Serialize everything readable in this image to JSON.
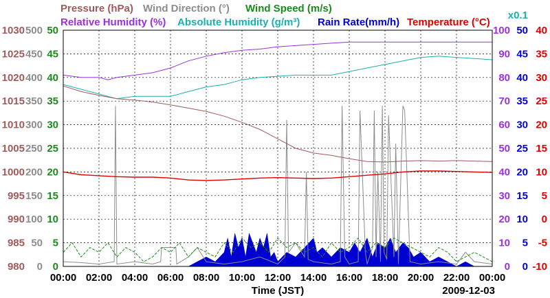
{
  "chart_data": {
    "type": "line",
    "title": "",
    "xlabel": "Time (JST)",
    "date_label": "2009-12-03",
    "x_tick_labels": [
      "00:00",
      "02:00",
      "04:00",
      "06:00",
      "08:00",
      "10:00",
      "12:00",
      "14:00",
      "16:00",
      "18:00",
      "20:00",
      "22:00",
      "00:00"
    ],
    "x_range_hours": [
      0,
      24
    ],
    "grid": true,
    "colors": {
      "pressure": "#a05a5a",
      "wind_direction": "#8c8c8c",
      "wind_speed": "#1a8a1a",
      "relative_humidity": "#9a30e0",
      "absolute_humidity": "#1ab0b0",
      "rain_rate": "#0000d0",
      "temperature": "#e00000"
    },
    "legend_row1": [
      {
        "key": "pressure",
        "label": "Pressure (hPa)"
      },
      {
        "key": "wind_direction",
        "label": "Wind Direction (°)"
      },
      {
        "key": "wind_speed",
        "label": "Wind Speed (m/s)"
      }
    ],
    "legend_row2": [
      {
        "key": "relative_humidity",
        "label": "Relative Humidity (%)"
      },
      {
        "key": "absolute_humidity",
        "label": "Absolute Humidity (g/m³)"
      },
      {
        "key": "rain_rate",
        "label": "Rain Rate(mm/h)"
      },
      {
        "key": "temperature",
        "label": "Temperature (°C)"
      }
    ],
    "multiplier_label": "x0.1",
    "axes": {
      "pressure": {
        "range": [
          980,
          1030
        ],
        "ticks": [
          "980",
          "985",
          "990",
          "995",
          "1000",
          "1005",
          "1010",
          "1015",
          "1020",
          "1025",
          "1030"
        ]
      },
      "wind_direction": {
        "range": [
          0,
          500
        ],
        "ticks": [
          "0",
          "50",
          "100",
          "150",
          "200",
          "250",
          "300",
          "350",
          "400",
          "450",
          "500"
        ]
      },
      "wind_speed": {
        "range": [
          0,
          50
        ],
        "ticks": [
          "0",
          "5",
          "10",
          "15",
          "20",
          "25",
          "30",
          "35",
          "40",
          "45",
          "50"
        ]
      },
      "relative_humidity": {
        "range": [
          0,
          100
        ],
        "ticks": [
          "0",
          "10",
          "20",
          "30",
          "40",
          "50",
          "60",
          "70",
          "80",
          "90",
          "100"
        ]
      },
      "rain_rate": {
        "range": [
          0,
          50
        ],
        "ticks": [
          "0",
          "5",
          "10",
          "15",
          "20",
          "25",
          "30",
          "35",
          "40",
          "45",
          "50"
        ]
      },
      "temperature": {
        "range": [
          -10,
          40
        ],
        "ticks": [
          "-10",
          "-5",
          "0",
          "5",
          "10",
          "15",
          "20",
          "25",
          "30",
          "35",
          "40"
        ]
      }
    },
    "series": [
      {
        "name": "Pressure",
        "key": "pressure",
        "axis": "pressure",
        "x": [
          0,
          1,
          2,
          3,
          4,
          5,
          6,
          7,
          8,
          9,
          10,
          11,
          12,
          12.5,
          13,
          13.5,
          14,
          15,
          16,
          17,
          18,
          19,
          20,
          21,
          22,
          23,
          24
        ],
        "y": [
          1018.2,
          1017,
          1016.2,
          1015.5,
          1015.2,
          1014.8,
          1014.2,
          1013.5,
          1012.8,
          1011.8,
          1010.5,
          1009,
          1007,
          1006,
          1005,
          1004.5,
          1004,
          1003.5,
          1002.8,
          1002.2,
          1002.1,
          1002.3,
          1002.4,
          1002.3,
          1002.4,
          1002.3,
          1002.2
        ]
      },
      {
        "name": "Relative Humidity",
        "key": "relative_humidity",
        "axis": "relative_humidity",
        "x": [
          0,
          1,
          2,
          2.5,
          3,
          4,
          5,
          6,
          7,
          8,
          9,
          10,
          11,
          12,
          13,
          14,
          15,
          16,
          17,
          18,
          19,
          20,
          21,
          22,
          23,
          24
        ],
        "y": [
          81,
          80,
          80,
          79,
          80,
          81,
          82,
          84,
          87,
          89,
          90.5,
          91.5,
          92,
          93,
          93.5,
          94,
          94.5,
          95,
          95,
          95,
          95,
          95,
          95,
          95,
          95,
          95
        ]
      },
      {
        "name": "Absolute Humidity",
        "key": "absolute_humidity",
        "axis": "relative_humidity",
        "x": [
          0,
          1,
          2,
          3,
          4,
          5,
          6,
          7,
          8,
          9,
          10,
          11,
          12,
          13,
          14,
          15,
          16,
          17,
          18,
          19,
          20,
          21,
          22,
          23,
          24
        ],
        "y": [
          77,
          75,
          73,
          71,
          72,
          72,
          72,
          74,
          76,
          77,
          79,
          80,
          80.5,
          81,
          81,
          81,
          82.5,
          84,
          85.5,
          87,
          88.5,
          89,
          88.5,
          88,
          87.5
        ]
      },
      {
        "name": "Temperature",
        "key": "temperature",
        "axis": "temperature",
        "x": [
          0,
          1,
          2,
          3,
          4,
          5,
          6,
          7,
          8,
          9,
          10,
          11,
          12,
          13,
          14,
          15,
          16,
          17,
          18,
          19,
          20,
          21,
          22,
          23,
          24
        ],
        "y": [
          10,
          9.4,
          9.2,
          9.0,
          8.9,
          8.9,
          8.7,
          8.3,
          8.2,
          8.3,
          8.5,
          8.7,
          8.8,
          8.7,
          8.6,
          8.7,
          9,
          9.3,
          9.6,
          10,
          10.2,
          10.2,
          10.1,
          10,
          9.9
        ]
      },
      {
        "name": "Wind Direction",
        "key": "wind_direction",
        "axis": "wind_direction",
        "x": [
          0,
          1,
          2,
          2.85,
          2.92,
          3.0,
          4,
          5,
          5.45,
          5.5,
          6.3,
          6.35,
          7,
          7.5,
          8,
          9,
          10,
          11,
          12,
          12.4,
          12.5,
          12.6,
          13,
          13.5,
          13.6,
          13.7,
          14,
          15,
          15.5,
          15.6,
          15.75,
          16,
          16.5,
          16.6,
          16.9,
          17,
          17.3,
          17.4,
          17.5,
          17.6,
          17.75,
          17.85,
          17.95,
          18.1,
          18.2,
          18.5,
          18.6,
          18.75,
          19,
          19.1,
          19.4,
          20,
          21,
          22,
          22.5,
          23,
          24
        ],
        "y": [
          10,
          8,
          5,
          10,
          340,
          5,
          10,
          5,
          10,
          40,
          40,
          5,
          20,
          40,
          10,
          5,
          10,
          20,
          5,
          20,
          310,
          30,
          50,
          20,
          200,
          15,
          10,
          5,
          10,
          340,
          20,
          5,
          10,
          330,
          30,
          5,
          40,
          330,
          20,
          200,
          10,
          340,
          30,
          15,
          320,
          20,
          260,
          5,
          340,
          330,
          10,
          5,
          10,
          5,
          30,
          10,
          5
        ]
      },
      {
        "name": "Wind Speed",
        "key": "wind_speed",
        "axis": "wind_speed",
        "x": [
          0,
          0.5,
          1,
          1.5,
          2,
          2.5,
          3,
          3.5,
          4,
          4.5,
          5,
          5.5,
          6,
          6.5,
          7,
          7.5,
          8,
          8.5,
          9,
          9.5,
          10,
          10.5,
          11,
          11.5,
          12,
          12.5,
          13,
          13.5,
          14,
          14.5,
          15,
          15.5,
          16,
          16.5,
          17,
          17.5,
          18,
          18.5,
          19,
          19.5,
          20,
          20.5,
          21,
          21.5,
          22,
          22.5,
          23,
          23.5,
          24
        ],
        "y": [
          3,
          5,
          2,
          4,
          3,
          5,
          2,
          4,
          3,
          1,
          2,
          4,
          3,
          5,
          2,
          4,
          3,
          2,
          5,
          3,
          6,
          4,
          5,
          3,
          6,
          4,
          5,
          3,
          4,
          2,
          5,
          3,
          4,
          6,
          3,
          5,
          4,
          6,
          5,
          4,
          3,
          2,
          4,
          3,
          1,
          2,
          3,
          2,
          1
        ]
      },
      {
        "name": "Rain Rate",
        "key": "rain_rate",
        "axis": "rain_rate",
        "x": [
          0,
          0.5,
          1,
          1.5,
          2,
          2.5,
          3,
          3.5,
          4,
          4.5,
          5,
          5.5,
          6,
          6.5,
          7,
          7.5,
          8,
          8.5,
          9,
          9.2,
          9.4,
          9.6,
          9.8,
          10,
          10.2,
          10.4,
          10.6,
          10.8,
          11,
          11.2,
          11.4,
          11.6,
          11.8,
          12,
          12.5,
          13,
          13.5,
          14,
          14.2,
          14.5,
          15,
          15.5,
          16,
          16.3,
          16.6,
          17,
          17.3,
          17.6,
          18,
          18.3,
          18.6,
          19,
          19.3,
          19.6,
          20,
          20.5,
          21,
          21.5,
          22,
          22.5,
          23,
          23.5,
          24
        ],
        "y": [
          0,
          0,
          0,
          0,
          0,
          0,
          0,
          0,
          0,
          0,
          0,
          0,
          0,
          0,
          0,
          1,
          2,
          1,
          3,
          6,
          2,
          7,
          4,
          6,
          2,
          7,
          5,
          3,
          6,
          4,
          7,
          2,
          3,
          1,
          3,
          2,
          4,
          6,
          3,
          4,
          2,
          4,
          3,
          5,
          3,
          6,
          2,
          5,
          4,
          6,
          3,
          5,
          4,
          2,
          3,
          1,
          2,
          1,
          0,
          1,
          0,
          0,
          0
        ]
      }
    ]
  }
}
